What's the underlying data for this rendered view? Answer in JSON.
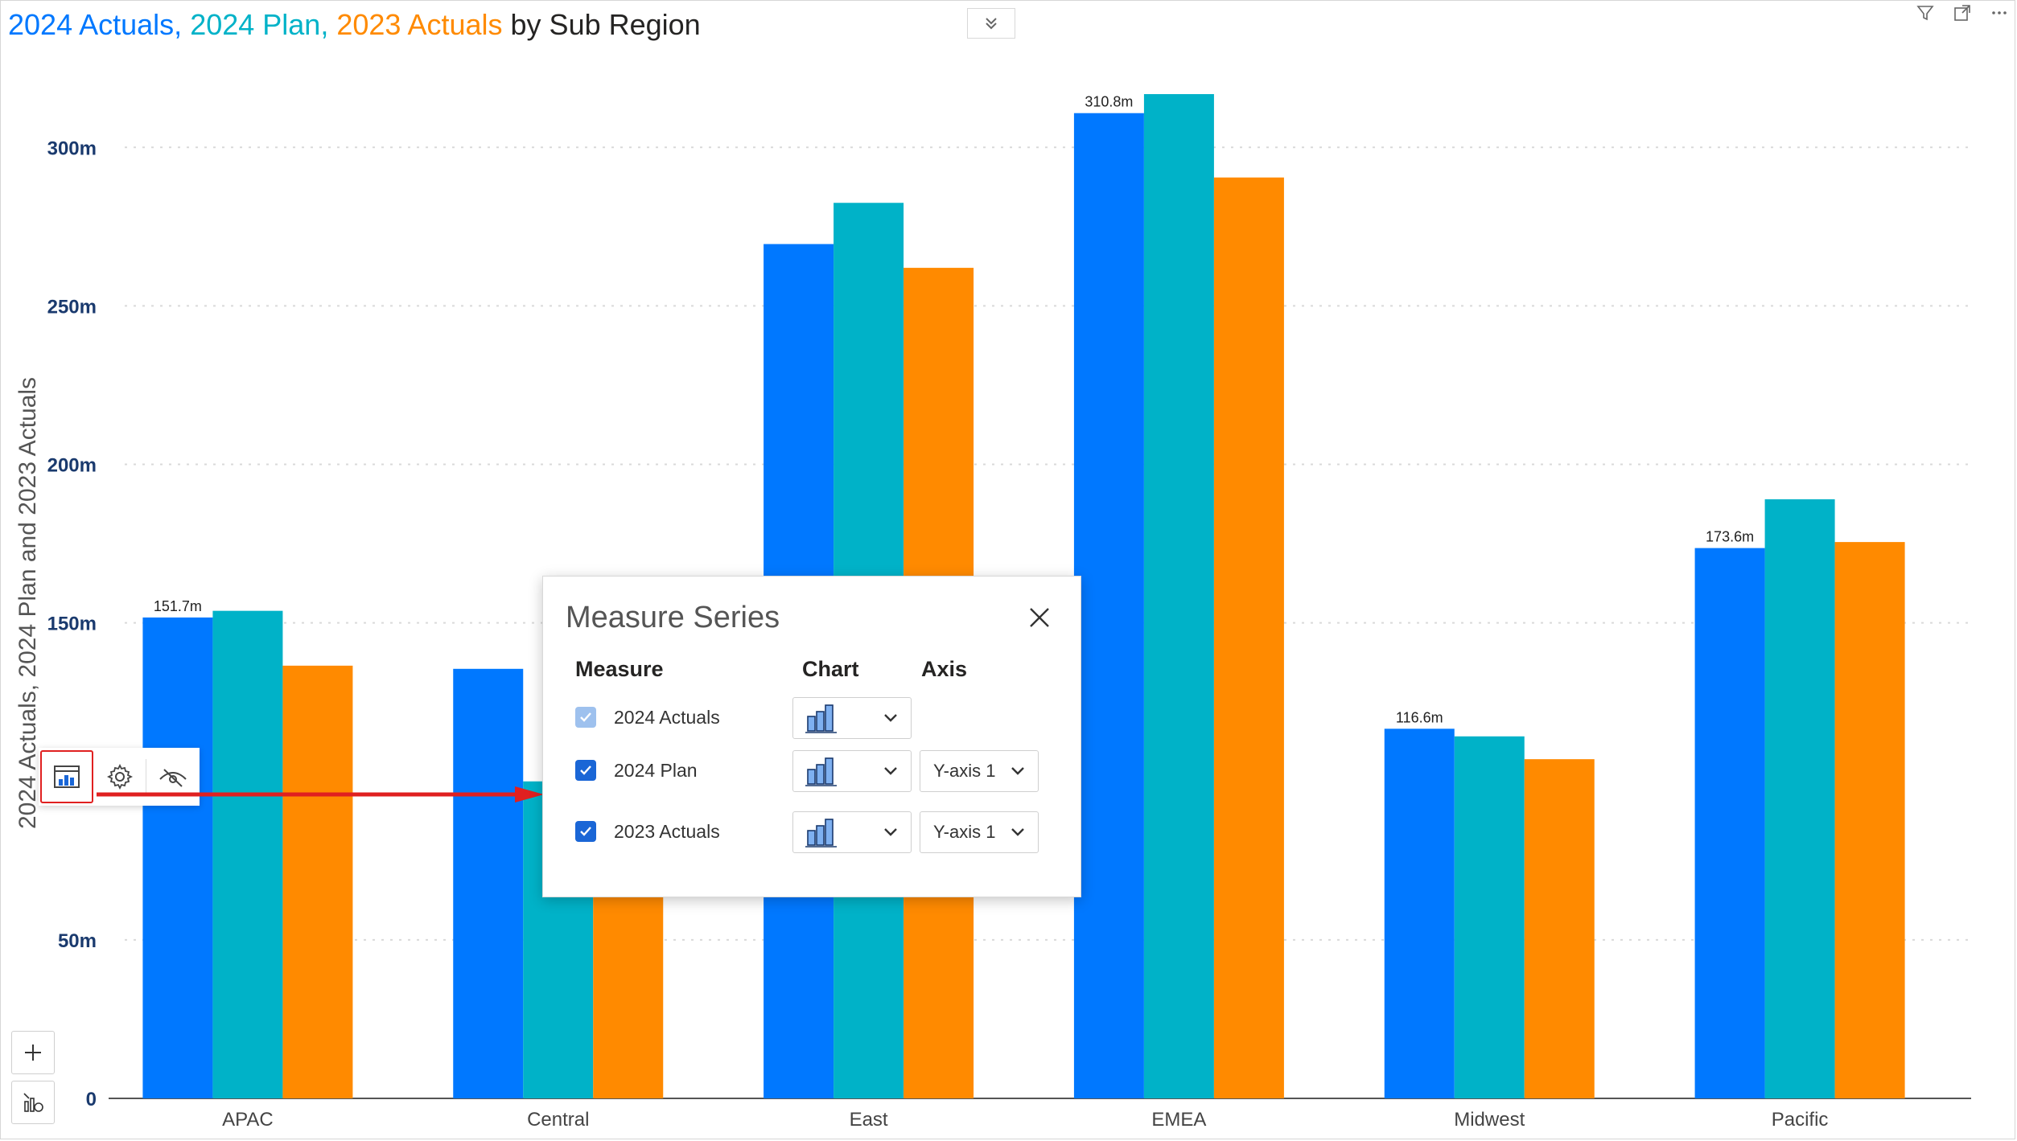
{
  "title": {
    "part1": "2024 Actuals,",
    "part2": "2024 Plan,",
    "part3": "2023 Actuals",
    "part4": "by Sub Region"
  },
  "icons": {
    "collapse": "chevron-double-down-icon",
    "filter": "filter-icon",
    "focus": "focus-mode-icon",
    "more": "more-options-icon",
    "toolbar": [
      "measure-series-icon",
      "gear-icon",
      "hide-icon"
    ],
    "zoom": [
      "plus-icon",
      "reset-zoom-icon"
    ]
  },
  "colors": {
    "actuals_2024": "#0078ff",
    "plan_2024": "#00b2c8",
    "actuals_2023": "#ff8a00",
    "arrow": "#e02020"
  },
  "chart_data": {
    "type": "bar",
    "title": "2024 Actuals, 2024 Plan, 2023 Actuals by Sub Region",
    "ylabel": "2024 Actuals, 2024 Plan and 2023 Actuals",
    "xlabel": "",
    "ylim": [
      0,
      330
    ],
    "yticks": [
      {
        "value": 0,
        "label": "0"
      },
      {
        "value": 50,
        "label": "50m"
      },
      {
        "value": 150,
        "label": "150m"
      },
      {
        "value": 200,
        "label": "200m"
      },
      {
        "value": 250,
        "label": "250m"
      },
      {
        "value": 300,
        "label": "300m"
      }
    ],
    "grid": true,
    "categories": [
      "APAC",
      "Central",
      "East",
      "EMEA",
      "Midwest",
      "Pacific"
    ],
    "series": [
      {
        "name": "2024 Actuals",
        "values": [
          151.7,
          135.5,
          269.5,
          310.8,
          116.6,
          173.6
        ]
      },
      {
        "name": "2024 Plan",
        "values": [
          153.8,
          100,
          282.5,
          316.8,
          114.2,
          189.0
        ]
      },
      {
        "name": "2023 Actuals",
        "values": [
          136.5,
          90,
          262.0,
          290.5,
          107.0,
          175.5
        ]
      }
    ],
    "data_labels": [
      {
        "category": "APAC",
        "text": "151.7m"
      },
      {
        "category": "EMEA",
        "text": "310.8m"
      },
      {
        "category": "Midwest",
        "text": "116.6m"
      },
      {
        "category": "Pacific",
        "text": "173.6m"
      }
    ]
  },
  "dialog": {
    "title": "Measure Series",
    "columns": {
      "measure": "Measure",
      "chart": "Chart",
      "axis": "Axis"
    },
    "rows": [
      {
        "label": "2024 Actuals",
        "checked": true,
        "disabled": true,
        "chart_icon": "bar-chart-icon",
        "axis": ""
      },
      {
        "label": "2024 Plan",
        "checked": true,
        "disabled": false,
        "chart_icon": "bar-chart-icon",
        "axis": "Y-axis 1"
      },
      {
        "label": "2023 Actuals",
        "checked": true,
        "disabled": false,
        "chart_icon": "bar-chart-icon",
        "axis": "Y-axis 1"
      }
    ]
  }
}
